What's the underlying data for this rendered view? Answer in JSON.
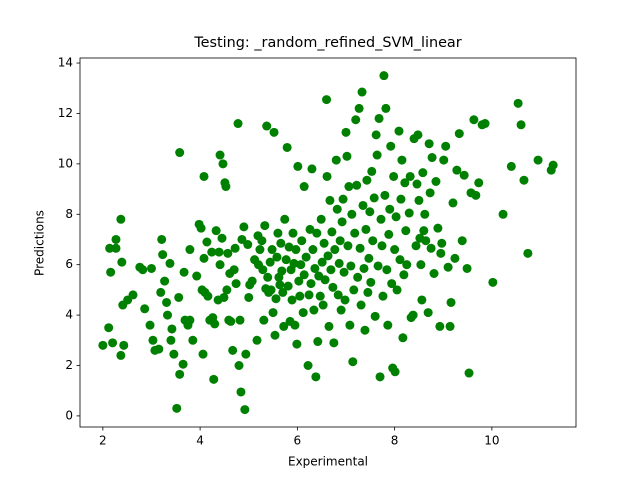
{
  "chart_data": {
    "type": "scatter",
    "title": "Testing: _random_refined_SVM_linear",
    "x_label": "Experimental",
    "y_label": "Predictions",
    "color": "#008000",
    "xlim": [
      1.53,
      11.73
    ],
    "ylim": [
      -0.44,
      14.2
    ],
    "xticks": [
      2,
      4,
      6,
      8,
      10
    ],
    "yticks": [
      0,
      2,
      4,
      6,
      8,
      10,
      12,
      14
    ],
    "x": [
      2.0,
      2.12,
      2.2,
      2.14,
      2.27,
      2.27,
      2.37,
      2.37,
      2.43,
      2.41,
      2.51,
      2.62,
      2.16,
      2.39,
      2.76,
      2.82,
      2.86,
      2.97,
      3.0,
      3.03,
      3.07,
      3.15,
      3.19,
      3.21,
      3.23,
      3.27,
      3.31,
      3.33,
      3.38,
      3.4,
      3.42,
      3.46,
      3.52,
      3.56,
      3.58,
      3.58,
      3.65,
      3.67,
      3.69,
      3.75,
      3.79,
      3.79,
      3.85,
      3.93,
      3.98,
      4.02,
      4.04,
      4.06,
      4.08,
      4.08,
      4.1,
      4.14,
      4.16,
      4.2,
      4.24,
      4.26,
      4.28,
      4.3,
      4.33,
      4.37,
      4.39,
      4.41,
      4.41,
      4.45,
      4.47,
      4.49,
      4.51,
      4.53,
      4.55,
      4.57,
      4.59,
      4.61,
      4.63,
      4.67,
      4.7,
      4.72,
      4.74,
      4.78,
      4.8,
      4.82,
      4.84,
      4.86,
      4.9,
      4.92,
      4.94,
      4.98,
      5.0,
      5.02,
      5.07,
      5.12,
      5.17,
      5.19,
      5.2,
      5.23,
      5.27,
      5.29,
      5.31,
      5.33,
      5.35,
      5.37,
      5.39,
      5.41,
      5.44,
      5.46,
      5.48,
      5.5,
      5.52,
      5.54,
      5.56,
      5.58,
      5.6,
      5.62,
      5.64,
      5.66,
      5.68,
      5.7,
      5.72,
      5.74,
      5.77,
      5.79,
      5.81,
      5.83,
      5.85,
      5.87,
      5.89,
      5.91,
      5.93,
      5.95,
      5.97,
      5.99,
      6.01,
      6.03,
      6.05,
      6.07,
      6.09,
      6.12,
      6.14,
      6.14,
      6.18,
      6.22,
      6.24,
      6.26,
      6.28,
      6.3,
      6.32,
      6.34,
      6.36,
      6.38,
      6.4,
      6.42,
      6.44,
      6.47,
      6.49,
      6.51,
      6.53,
      6.55,
      6.57,
      6.6,
      6.61,
      6.63,
      6.65,
      6.67,
      6.69,
      6.71,
      6.73,
      6.75,
      6.77,
      6.8,
      6.82,
      6.84,
      6.86,
      6.88,
      6.9,
      6.92,
      6.94,
      6.96,
      6.98,
      7.0,
      7.02,
      7.04,
      7.06,
      7.08,
      7.1,
      7.12,
      7.14,
      7.16,
      7.18,
      7.2,
      7.22,
      7.24,
      7.27,
      7.29,
      7.31,
      7.33,
      7.35,
      7.37,
      7.39,
      7.41,
      7.43,
      7.45,
      7.47,
      7.49,
      7.51,
      7.53,
      7.55,
      7.58,
      7.6,
      7.62,
      7.64,
      7.66,
      7.68,
      7.7,
      7.72,
      7.74,
      7.76,
      7.78,
      7.8,
      7.82,
      7.84,
      7.86,
      7.88,
      7.9,
      7.92,
      7.94,
      7.96,
      7.98,
      8.0,
      8.01,
      8.03,
      8.05,
      8.09,
      8.11,
      8.13,
      8.15,
      8.17,
      8.19,
      8.21,
      8.23,
      8.25,
      8.3,
      8.32,
      8.34,
      8.38,
      8.4,
      8.44,
      8.46,
      8.48,
      8.5,
      8.52,
      8.54,
      8.56,
      8.58,
      8.6,
      8.62,
      8.64,
      8.69,
      8.71,
      8.73,
      8.75,
      8.77,
      8.81,
      8.85,
      8.89,
      8.93,
      8.95,
      8.97,
      9.01,
      9.05,
      9.1,
      9.14,
      9.16,
      9.2,
      9.24,
      9.28,
      9.33,
      9.39,
      9.43,
      9.49,
      9.53,
      9.57,
      9.63,
      9.67,
      9.73,
      9.8,
      9.86,
      10.02,
      10.23,
      10.4,
      10.54,
      10.6,
      10.66,
      10.74,
      10.95,
      11.22,
      11.26
    ],
    "values": [
      2.8,
      3.5,
      2.9,
      6.65,
      7.0,
      6.65,
      7.8,
      2.4,
      2.8,
      4.4,
      4.6,
      4.8,
      5.7,
      6.1,
      5.9,
      5.8,
      4.25,
      3.6,
      5.85,
      3.0,
      2.6,
      2.65,
      4.9,
      7.0,
      6.4,
      5.35,
      4.5,
      4.0,
      6.05,
      3.0,
      3.45,
      2.45,
      0.3,
      4.7,
      10.45,
      1.65,
      2.05,
      5.7,
      3.8,
      3.6,
      3.8,
      6.6,
      3.0,
      5.55,
      7.6,
      7.45,
      5.0,
      2.45,
      9.5,
      6.25,
      4.9,
      6.9,
      4.75,
      3.8,
      6.5,
      3.9,
      1.45,
      3.65,
      7.35,
      4.6,
      6.5,
      6.0,
      10.35,
      7.05,
      10.0,
      4.7,
      9.25,
      9.1,
      5.0,
      6.45,
      3.8,
      5.65,
      3.75,
      2.6,
      5.8,
      6.65,
      5.25,
      11.6,
      2.0,
      3.8,
      0.95,
      7.0,
      7.5,
      0.25,
      2.45,
      6.8,
      4.7,
      5.2,
      5.35,
      6.2,
      3.0,
      7.15,
      6.0,
      6.6,
      6.95,
      5.8,
      3.8,
      7.55,
      5.05,
      11.5,
      5.5,
      4.9,
      6.1,
      5.0,
      6.6,
      4.1,
      11.25,
      3.2,
      4.65,
      6.3,
      7.25,
      5.5,
      5.2,
      6.85,
      5.75,
      4.9,
      3.55,
      7.8,
      6.2,
      10.65,
      5.15,
      6.7,
      3.75,
      5.8,
      4.6,
      7.25,
      6.05,
      3.6,
      6.6,
      2.85,
      9.9,
      5.35,
      4.75,
      6.0,
      6.95,
      4.1,
      9.1,
      5.6,
      6.3,
      2.0,
      4.8,
      7.4,
      5.25,
      9.8,
      6.6,
      4.2,
      5.85,
      1.55,
      7.25,
      2.95,
      5.55,
      4.75,
      7.8,
      6.1,
      4.4,
      6.85,
      5.4,
      12.55,
      9.5,
      6.35,
      3.55,
      8.55,
      5.8,
      7.3,
      5.1,
      2.9,
      6.6,
      10.15,
      8.2,
      4.8,
      6.05,
      6.95,
      4.2,
      7.7,
      8.6,
      5.7,
      4.6,
      11.25,
      10.3,
      6.75,
      9.1,
      3.6,
      5.95,
      8.0,
      2.15,
      5.0,
      7.25,
      11.75,
      9.15,
      5.5,
      12.2,
      6.65,
      4.4,
      12.85,
      8.35,
      5.85,
      3.4,
      7.4,
      9.35,
      4.9,
      6.25,
      8.1,
      5.3,
      9.7,
      6.95,
      8.65,
      3.95,
      11.15,
      10.35,
      5.95,
      11.8,
      1.55,
      7.8,
      6.75,
      4.75,
      13.5,
      8.75,
      12.2,
      5.8,
      3.6,
      7.2,
      8.2,
      10.7,
      5.25,
      1.9,
      9.5,
      6.6,
      1.75,
      7.9,
      5.0,
      11.3,
      6.2,
      8.6,
      10.15,
      3.1,
      5.6,
      9.25,
      7.35,
      6.0,
      8.05,
      9.5,
      3.9,
      4.0,
      11.0,
      6.75,
      9.2,
      11.15,
      8.55,
      7.05,
      6.0,
      4.6,
      9.65,
      7.35,
      8.0,
      6.95,
      4.1,
      10.8,
      8.85,
      6.65,
      10.25,
      5.65,
      9.3,
      7.45,
      3.55,
      6.45,
      6.85,
      10.15,
      10.7,
      5.9,
      3.55,
      4.5,
      8.45,
      6.25,
      9.75,
      11.2,
      6.95,
      9.55,
      5.85,
      1.7,
      8.85,
      11.75,
      8.75,
      9.25,
      11.55,
      11.6,
      5.3,
      8.0,
      9.9,
      12.4,
      11.55,
      9.35,
      6.45,
      10.15,
      9.75,
      9.95
    ]
  }
}
